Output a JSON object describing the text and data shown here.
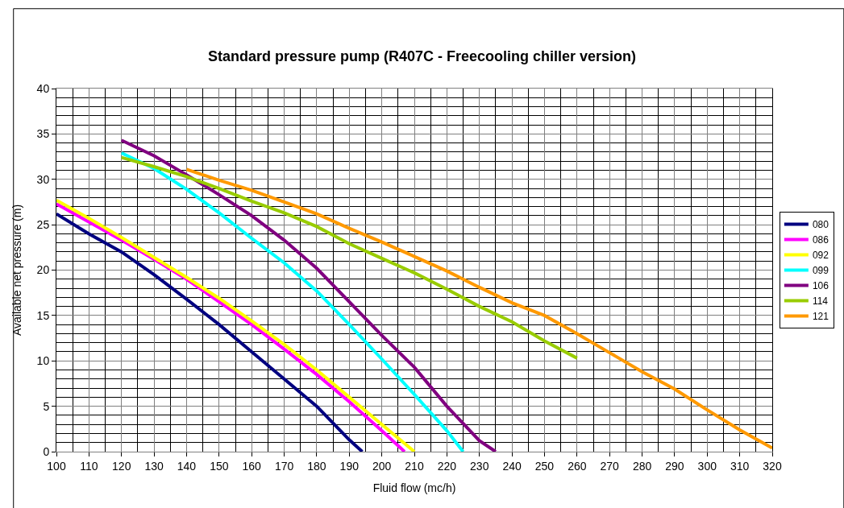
{
  "chart_data": {
    "type": "line",
    "title": "Standard pressure pump (R407C - Freecooling chiller version)",
    "xlabel": "Fluid flow (mc/h)",
    "ylabel": "Available net pressure (m)",
    "xlim": [
      100,
      320
    ],
    "xticks": [
      100,
      110,
      120,
      130,
      140,
      150,
      160,
      170,
      180,
      190,
      200,
      210,
      220,
      230,
      240,
      250,
      260,
      270,
      280,
      290,
      300,
      310,
      320
    ],
    "ylim": [
      0,
      40
    ],
    "yticks": [
      0,
      5,
      10,
      15,
      20,
      25,
      30,
      35,
      40
    ],
    "grid": true,
    "legend": "right",
    "marker": "none",
    "line_style": "solid",
    "series": [
      {
        "name": "080",
        "color": "#000080",
        "x": [
          100,
          110,
          120,
          130,
          140,
          150,
          160,
          170,
          180,
          190,
          194
        ],
        "values": [
          26.2,
          24,
          22,
          19.5,
          16.8,
          14,
          11,
          8,
          5,
          1.3,
          0
        ]
      },
      {
        "name": "086",
        "color": "#ff00ff",
        "x": [
          100,
          110,
          120,
          130,
          140,
          150,
          160,
          170,
          180,
          190,
          200,
          207
        ],
        "values": [
          27.3,
          25.3,
          23.3,
          21.2,
          19,
          16.5,
          14,
          11.3,
          8.5,
          5.5,
          2.3,
          0
        ]
      },
      {
        "name": "092",
        "color": "#ffff00",
        "x": [
          100,
          110,
          120,
          130,
          140,
          150,
          160,
          170,
          180,
          190,
          200,
          210
        ],
        "values": [
          27.7,
          25.7,
          23.6,
          21.4,
          19.2,
          16.9,
          14.4,
          11.8,
          9,
          6,
          3,
          0
        ]
      },
      {
        "name": "099",
        "color": "#00ffff",
        "x": [
          120,
          130,
          140,
          150,
          160,
          170,
          180,
          190,
          200,
          210,
          220,
          225
        ],
        "values": [
          32.9,
          31.2,
          28.9,
          26.3,
          23.5,
          20.8,
          17.7,
          14,
          10.2,
          6.3,
          2.3,
          0
        ]
      },
      {
        "name": "106",
        "color": "#800080",
        "x": [
          120,
          130,
          140,
          150,
          160,
          170,
          180,
          190,
          200,
          210,
          220,
          230,
          235
        ],
        "values": [
          34.3,
          32.6,
          30.5,
          28.3,
          26,
          23.3,
          20.2,
          16.5,
          12.8,
          9.3,
          5,
          1.2,
          0
        ]
      },
      {
        "name": "114",
        "color": "#99cc00",
        "x": [
          120,
          130,
          140,
          150,
          160,
          170,
          180,
          190,
          200,
          210,
          220,
          230,
          240,
          250,
          260
        ],
        "values": [
          32.4,
          31.4,
          30.3,
          29,
          27.6,
          26.3,
          24.8,
          22.9,
          21.3,
          19.7,
          17.9,
          16,
          14.3,
          12.2,
          10.3
        ]
      },
      {
        "name": "121",
        "color": "#ff9900",
        "x": [
          140,
          150,
          160,
          170,
          180,
          190,
          200,
          210,
          220,
          230,
          240,
          250,
          260,
          270,
          280,
          290,
          300,
          310,
          320
        ],
        "values": [
          31.1,
          29.9,
          28.8,
          27.5,
          26.2,
          24.6,
          23.1,
          21.5,
          19.9,
          18.1,
          16.4,
          15,
          13,
          10.9,
          8.8,
          6.9,
          4.6,
          2.4,
          0.4
        ]
      }
    ]
  }
}
